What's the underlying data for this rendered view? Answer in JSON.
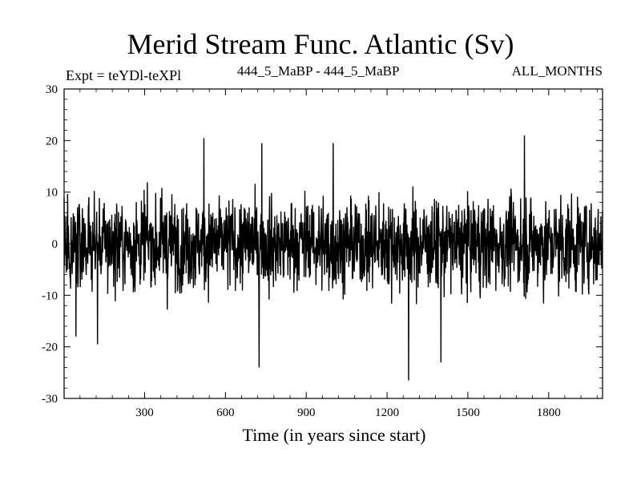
{
  "chart_data": {
    "type": "line",
    "title": "Merid Stream Func. Atlantic (Sv)",
    "subtitle_left": "Expt = teYDl-teXPl",
    "subtitle_center": "444_5_MaBP - 444_5_MaBP",
    "subtitle_right": "ALL_MONTHS",
    "xlabel": "Time (in years since start)",
    "ylabel": "",
    "xlim": [
      1,
      2000
    ],
    "ylim": [
      -30,
      30
    ],
    "x_ticks": [
      300,
      600,
      900,
      1200,
      1500,
      1800
    ],
    "y_ticks": [
      30,
      20,
      10,
      0,
      -10,
      -20,
      -30
    ],
    "grid": false,
    "series": [
      {
        "color": "#000000",
        "n_points": 2000,
        "mean": 0,
        "typical_range": [
          -15,
          15
        ],
        "notable_points": [
          {
            "x": 45,
            "y": -18
          },
          {
            "x": 125,
            "y": -19.5
          },
          {
            "x": 520,
            "y": 20.5
          },
          {
            "x": 725,
            "y": -24
          },
          {
            "x": 735,
            "y": 19.5
          },
          {
            "x": 1000,
            "y": 19.5
          },
          {
            "x": 1280,
            "y": -26.5
          },
          {
            "x": 1400,
            "y": -23
          },
          {
            "x": 1710,
            "y": 21
          }
        ]
      }
    ]
  }
}
